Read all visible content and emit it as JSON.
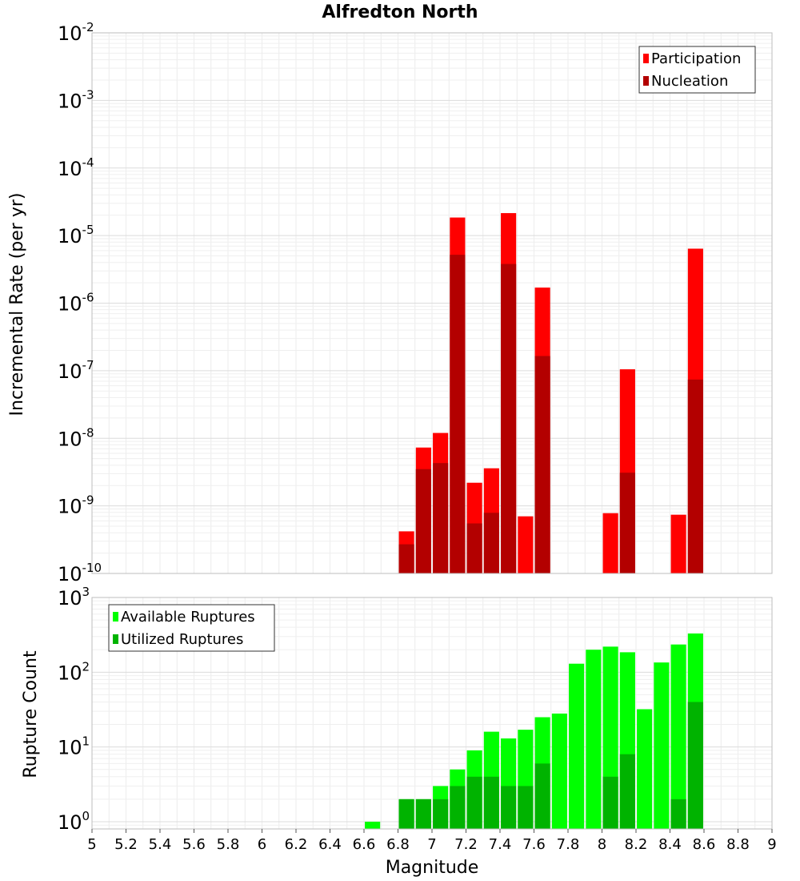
{
  "chart_data": [
    {
      "type": "bar",
      "title": "Alfredton North",
      "ylabel": "Incremental Rate (per yr)",
      "xlabel": "",
      "yscale": "log",
      "ylim": [
        1e-10,
        0.01
      ],
      "xlim": [
        5,
        9
      ],
      "grid": true,
      "legend_position": "top-right",
      "y_ticks": [
        {
          "base": "10",
          "exp": "-10",
          "value": 1e-10
        },
        {
          "base": "10",
          "exp": "-9",
          "value": 1e-09
        },
        {
          "base": "10",
          "exp": "-8",
          "value": 1e-08
        },
        {
          "base": "10",
          "exp": "-7",
          "value": 1e-07
        },
        {
          "base": "10",
          "exp": "-6",
          "value": 1e-06
        },
        {
          "base": "10",
          "exp": "-5",
          "value": 1e-05
        },
        {
          "base": "10",
          "exp": "-4",
          "value": 0.0001
        },
        {
          "base": "10",
          "exp": "-3",
          "value": 0.001
        },
        {
          "base": "10",
          "exp": "-2",
          "value": 0.01
        }
      ],
      "series": [
        {
          "name": "Participation",
          "color": "#ff0000",
          "points": [
            {
              "x": 6.85,
              "y": 4.2e-10
            },
            {
              "x": 6.95,
              "y": 7.3e-09
            },
            {
              "x": 7.05,
              "y": 1.2e-08
            },
            {
              "x": 7.15,
              "y": 1.85e-05
            },
            {
              "x": 7.25,
              "y": 2.2e-09
            },
            {
              "x": 7.35,
              "y": 3.6e-09
            },
            {
              "x": 7.45,
              "y": 2.15e-05
            },
            {
              "x": 7.55,
              "y": 7e-10
            },
            {
              "x": 7.65,
              "y": 1.7e-06
            },
            {
              "x": 8.05,
              "y": 7.8e-10
            },
            {
              "x": 8.15,
              "y": 1.05e-07
            },
            {
              "x": 8.45,
              "y": 7.4e-10
            },
            {
              "x": 8.55,
              "y": 6.4e-06
            }
          ]
        },
        {
          "name": "Nucleation",
          "color": "#b30000",
          "points": [
            {
              "x": 6.85,
              "y": 2.7e-10
            },
            {
              "x": 6.95,
              "y": 3.5e-09
            },
            {
              "x": 7.05,
              "y": 4.3e-09
            },
            {
              "x": 7.15,
              "y": 5.2e-06
            },
            {
              "x": 7.25,
              "y": 5.5e-10
            },
            {
              "x": 7.35,
              "y": 7.9e-10
            },
            {
              "x": 7.45,
              "y": 3.8e-06
            },
            {
              "x": 7.65,
              "y": 1.65e-07
            },
            {
              "x": 8.15,
              "y": 3.1e-09
            },
            {
              "x": 8.55,
              "y": 7.4e-08
            }
          ]
        }
      ]
    },
    {
      "type": "bar",
      "title": "",
      "ylabel": "Rupture Count",
      "xlabel": "Magnitude",
      "yscale": "log",
      "ylim": [
        0.8,
        1000
      ],
      "xlim": [
        5,
        9
      ],
      "grid": true,
      "legend_position": "top-left",
      "x_ticks": [
        "5",
        "5.2",
        "5.4",
        "5.6",
        "5.8",
        "6",
        "6.2",
        "6.4",
        "6.6",
        "6.8",
        "7",
        "7.2",
        "7.4",
        "7.6",
        "7.8",
        "8",
        "8.2",
        "8.4",
        "8.6",
        "8.8",
        "9"
      ],
      "x_tick_values": [
        5,
        5.2,
        5.4,
        5.6,
        5.8,
        6,
        6.2,
        6.4,
        6.6,
        6.8,
        7,
        7.2,
        7.4,
        7.6,
        7.8,
        8,
        8.2,
        8.4,
        8.6,
        8.8,
        9
      ],
      "y_ticks": [
        {
          "base": "10",
          "exp": "0",
          "value": 1
        },
        {
          "base": "10",
          "exp": "1",
          "value": 10
        },
        {
          "base": "10",
          "exp": "2",
          "value": 100
        },
        {
          "base": "10",
          "exp": "3",
          "value": 1000
        }
      ],
      "series": [
        {
          "name": "Available Ruptures",
          "color": "#00ff00",
          "points": [
            {
              "x": 6.65,
              "y": 1
            },
            {
              "x": 6.85,
              "y": 2
            },
            {
              "x": 6.95,
              "y": 2
            },
            {
              "x": 7.05,
              "y": 3
            },
            {
              "x": 7.15,
              "y": 5
            },
            {
              "x": 7.25,
              "y": 9
            },
            {
              "x": 7.35,
              "y": 16
            },
            {
              "x": 7.45,
              "y": 13
            },
            {
              "x": 7.55,
              "y": 17
            },
            {
              "x": 7.65,
              "y": 25
            },
            {
              "x": 7.75,
              "y": 28
            },
            {
              "x": 7.85,
              "y": 130
            },
            {
              "x": 7.95,
              "y": 200
            },
            {
              "x": 8.05,
              "y": 220
            },
            {
              "x": 8.15,
              "y": 185
            },
            {
              "x": 8.25,
              "y": 32
            },
            {
              "x": 8.35,
              "y": 135
            },
            {
              "x": 8.45,
              "y": 235
            },
            {
              "x": 8.55,
              "y": 330
            }
          ]
        },
        {
          "name": "Utilized Ruptures",
          "color": "#00b300",
          "points": [
            {
              "x": 6.85,
              "y": 2
            },
            {
              "x": 6.95,
              "y": 2
            },
            {
              "x": 7.05,
              "y": 2
            },
            {
              "x": 7.15,
              "y": 3
            },
            {
              "x": 7.25,
              "y": 4
            },
            {
              "x": 7.35,
              "y": 4
            },
            {
              "x": 7.45,
              "y": 3
            },
            {
              "x": 7.55,
              "y": 3
            },
            {
              "x": 7.65,
              "y": 6
            },
            {
              "x": 8.05,
              "y": 4
            },
            {
              "x": 8.15,
              "y": 8
            },
            {
              "x": 8.45,
              "y": 2
            },
            {
              "x": 8.55,
              "y": 40
            }
          ]
        }
      ]
    }
  ]
}
